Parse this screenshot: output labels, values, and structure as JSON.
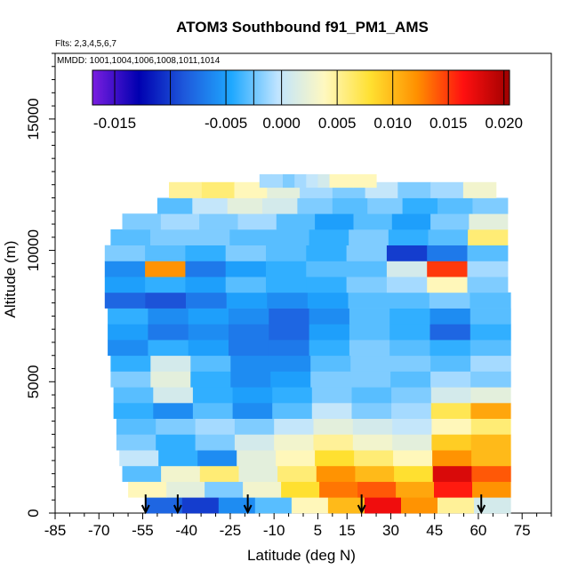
{
  "chart_data": {
    "type": "heatmap",
    "title": "ATOM3 Southbound f91_PM1_AMS",
    "subtitle_flights": "Flts: 2,3,4,5,6,7",
    "subtitle_dates": "MMDD: 1001,1004,1006,1008,1011,1014",
    "xlabel": "Latitude (deg N)",
    "ylabel": "Altitude (m)",
    "xlim": [
      -85,
      85
    ],
    "ylim": [
      0,
      17500
    ],
    "x_tick_labels": [
      "-85",
      "-70",
      "-55",
      "-40",
      "-25",
      "-10",
      "5",
      "15",
      "30",
      "45",
      "60",
      "75"
    ],
    "x_tick_values": [
      -85,
      -70,
      -55,
      -40,
      -25,
      -10,
      5,
      15,
      30,
      45,
      60,
      75
    ],
    "y_tick_labels": [
      "0",
      "5000",
      "10000",
      "15000"
    ],
    "y_tick_values": [
      0,
      5000,
      10000,
      15000
    ],
    "colorbar": {
      "min": -0.017,
      "max": 0.0205,
      "tick_labels": [
        "-0.015",
        "-0.005",
        "0.000",
        "0.005",
        "0.010",
        "0.015",
        "0.020"
      ],
      "tick_values": [
        -0.015,
        -0.005,
        0.0,
        0.005,
        0.01,
        0.015,
        0.02
      ],
      "colors": [
        "#7a1ee0",
        "#0000b0",
        "#1e5adc",
        "#1ea8ff",
        "#bfe4ff",
        "#fff8c0",
        "#ffe030",
        "#ff9000",
        "#ff1010",
        "#a00000"
      ]
    },
    "flight_marker_latitudes": [
      -54,
      -43,
      -19,
      20,
      61
    ],
    "data_extent": {
      "lat_min": -68,
      "lat_max": 71,
      "alt_min": 0,
      "alt_max": 12900
    },
    "layers": [
      {
        "alt": 300,
        "lat_min": -54,
        "lat_max": 71,
        "values": [
          -0.008,
          -0.01,
          -0.006,
          -0.003,
          0.004,
          0.01,
          0.017,
          0.012,
          0.005,
          0.001
        ]
      },
      {
        "alt": 900,
        "lat_min": -60,
        "lat_max": 71,
        "values": [
          0.004,
          0.002,
          -0.002,
          0.003,
          0.008,
          0.013,
          0.014,
          0.011,
          0.016,
          0.012
        ]
      },
      {
        "alt": 1500,
        "lat_min": -62,
        "lat_max": 71,
        "values": [
          -0.003,
          0.003,
          0.006,
          0.002,
          0.006,
          0.012,
          0.01,
          0.008,
          0.018,
          0.014
        ]
      },
      {
        "alt": 2100,
        "lat_min": -63,
        "lat_max": 71,
        "values": [
          0.0,
          -0.004,
          -0.006,
          0.002,
          0.004,
          0.008,
          0.006,
          0.004,
          0.012,
          0.01
        ]
      },
      {
        "alt": 2700,
        "lat_min": -64,
        "lat_max": 71,
        "values": [
          -0.002,
          -0.004,
          -0.002,
          0.001,
          0.003,
          0.005,
          0.003,
          0.002,
          0.009,
          0.01
        ]
      },
      {
        "alt": 3300,
        "lat_min": -64,
        "lat_max": 71,
        "values": [
          -0.003,
          -0.002,
          -0.001,
          -0.002,
          0.0,
          0.002,
          0.001,
          0.0,
          0.004,
          0.006
        ]
      },
      {
        "alt": 3900,
        "lat_min": -65,
        "lat_max": 71,
        "values": [
          -0.004,
          -0.006,
          -0.003,
          -0.006,
          -0.003,
          0.0,
          -0.002,
          -0.001,
          0.007,
          0.011
        ]
      },
      {
        "alt": 4500,
        "lat_min": -65,
        "lat_max": 71,
        "values": [
          -0.003,
          0.001,
          -0.004,
          -0.005,
          -0.004,
          -0.002,
          -0.003,
          -0.002,
          0.001,
          0.002
        ]
      },
      {
        "alt": 5100,
        "lat_min": -66,
        "lat_max": 71,
        "values": [
          -0.002,
          0.002,
          -0.004,
          -0.006,
          -0.005,
          -0.002,
          -0.002,
          -0.003,
          -0.001,
          -0.002
        ]
      },
      {
        "alt": 5700,
        "lat_min": -66,
        "lat_max": 71,
        "values": [
          -0.004,
          0.001,
          -0.003,
          -0.006,
          -0.006,
          -0.003,
          -0.002,
          -0.002,
          -0.003,
          -0.001
        ]
      },
      {
        "alt": 6300,
        "lat_min": -67,
        "lat_max": 71,
        "values": [
          -0.006,
          -0.004,
          -0.005,
          -0.007,
          -0.007,
          -0.004,
          -0.002,
          -0.003,
          -0.004,
          -0.003
        ]
      },
      {
        "alt": 6900,
        "lat_min": -67,
        "lat_max": 71,
        "values": [
          -0.005,
          -0.007,
          -0.006,
          -0.007,
          -0.008,
          -0.005,
          -0.003,
          -0.004,
          -0.008,
          -0.004
        ]
      },
      {
        "alt": 7500,
        "lat_min": -67,
        "lat_max": 71,
        "values": [
          -0.004,
          -0.006,
          -0.005,
          -0.006,
          -0.008,
          -0.006,
          -0.003,
          -0.004,
          -0.006,
          -0.003
        ]
      },
      {
        "alt": 8100,
        "lat_min": -68,
        "lat_max": 71,
        "values": [
          -0.008,
          -0.009,
          -0.007,
          -0.005,
          -0.006,
          -0.005,
          -0.003,
          -0.003,
          -0.002,
          -0.003
        ]
      },
      {
        "alt": 8700,
        "lat_min": -68,
        "lat_max": 70,
        "values": [
          -0.005,
          -0.004,
          -0.005,
          -0.003,
          -0.004,
          -0.004,
          -0.002,
          -0.001,
          0.004,
          -0.002
        ]
      },
      {
        "alt": 9300,
        "lat_min": -68,
        "lat_max": 70,
        "values": [
          -0.006,
          0.012,
          -0.007,
          -0.005,
          -0.004,
          -0.003,
          -0.003,
          0.001,
          0.015,
          -0.001
        ]
      },
      {
        "alt": 9900,
        "lat_min": -68,
        "lat_max": 70,
        "values": [
          -0.002,
          -0.003,
          -0.004,
          -0.002,
          -0.003,
          -0.004,
          -0.002,
          -0.01,
          -0.007,
          -0.003
        ]
      },
      {
        "alt": 10500,
        "lat_min": -66,
        "lat_max": 70,
        "values": [
          -0.003,
          -0.002,
          -0.002,
          -0.003,
          -0.003,
          -0.004,
          -0.002,
          -0.004,
          -0.003,
          0.006
        ]
      },
      {
        "alt": 11100,
        "lat_min": -62,
        "lat_max": 70,
        "values": [
          -0.002,
          -0.001,
          -0.002,
          -0.001,
          -0.003,
          -0.005,
          -0.003,
          -0.005,
          -0.002,
          0.002
        ]
      },
      {
        "alt": 11700,
        "lat_min": -50,
        "lat_max": 70,
        "values": [
          -0.003,
          0.0,
          0.002,
          0.001,
          -0.002,
          -0.003,
          -0.002,
          -0.004,
          -0.003,
          -0.002
        ]
      },
      {
        "alt": 12300,
        "lat_min": -46,
        "lat_max": 66,
        "values": [
          0.005,
          0.006,
          0.004,
          0.002,
          -0.001,
          -0.002,
          0.0,
          -0.002,
          -0.001,
          0.003
        ]
      },
      {
        "alt": 12700,
        "lat_min": -15,
        "lat_max": 25,
        "values": [
          -0.001,
          -0.001,
          -0.002,
          -0.001,
          0.0,
          0.001,
          0.004,
          0.004,
          0.004,
          0.004
        ]
      }
    ]
  }
}
